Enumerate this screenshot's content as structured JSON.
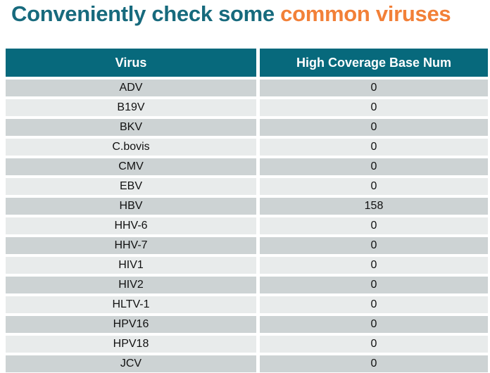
{
  "title": {
    "teal_text": "Conveniently check some ",
    "orange_text": "common viruses"
  },
  "colors": {
    "title_teal": "#176A7D",
    "title_orange": "#F28038",
    "header_bg": "#07697C",
    "header_text": "#FFFFFF",
    "row_dark": "#CDD3D4",
    "row_light": "#E8EBEB",
    "row_text": "#111111",
    "background": "#FFFFFF"
  },
  "table": {
    "columns": [
      "Virus",
      "High Coverage Base Num"
    ],
    "rows": [
      {
        "virus": "ADV",
        "value": "0"
      },
      {
        "virus": "B19V",
        "value": "0"
      },
      {
        "virus": "BKV",
        "value": "0"
      },
      {
        "virus": "C.bovis",
        "value": "0"
      },
      {
        "virus": "CMV",
        "value": "0"
      },
      {
        "virus": "EBV",
        "value": "0"
      },
      {
        "virus": "HBV",
        "value": "158"
      },
      {
        "virus": "HHV-6",
        "value": "0"
      },
      {
        "virus": "HHV-7",
        "value": "0"
      },
      {
        "virus": "HIV1",
        "value": "0"
      },
      {
        "virus": "HIV2",
        "value": "0"
      },
      {
        "virus": "HLTV-1",
        "value": "0"
      },
      {
        "virus": "HPV16",
        "value": "0"
      },
      {
        "virus": "HPV18",
        "value": "0"
      },
      {
        "virus": "JCV",
        "value": "0"
      }
    ]
  }
}
